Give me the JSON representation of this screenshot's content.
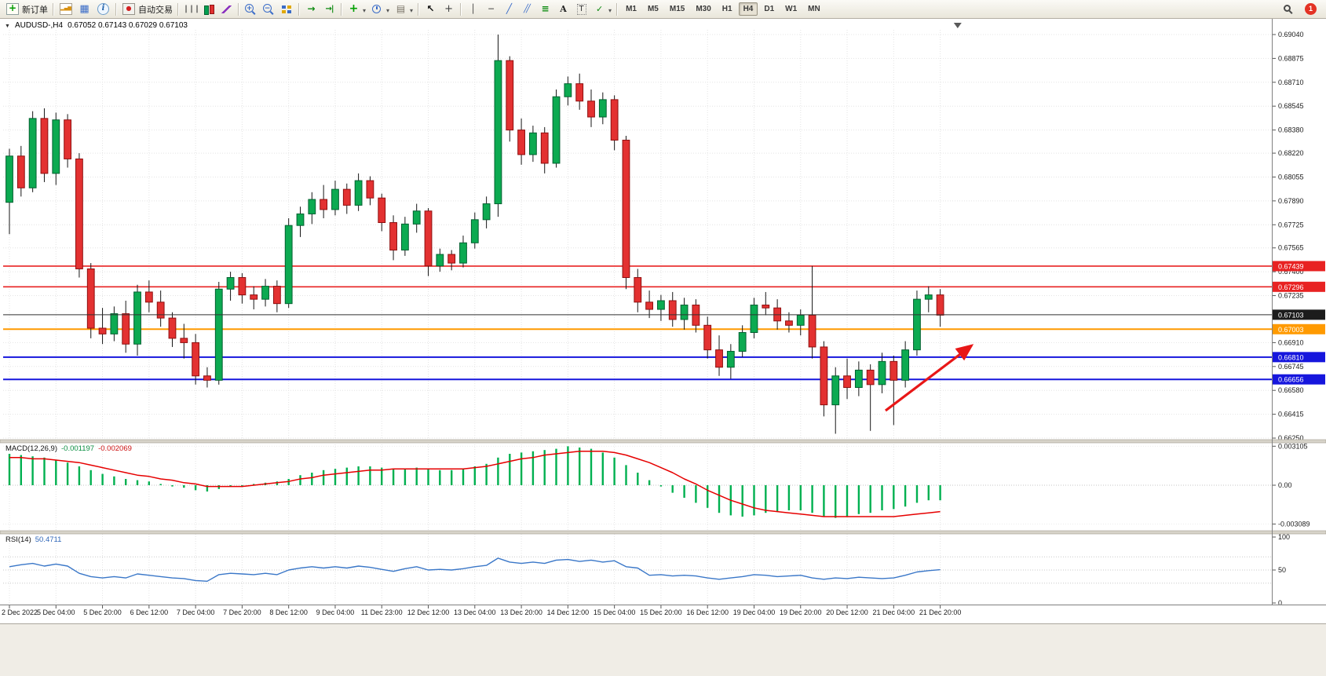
{
  "toolbar": {
    "groups": [
      {
        "items": [
          {
            "name": "new-order-button",
            "icon": "new-order-icon",
            "cls": "ic-neworder",
            "label": "新订单"
          }
        ]
      },
      {
        "items": [
          {
            "name": "chart-window-button",
            "icon": "chart-window-icon",
            "cls": "ic-chartwin"
          },
          {
            "name": "profiles-button",
            "icon": "profiles-icon",
            "cls": "ic-profiles"
          },
          {
            "name": "data-window-button",
            "icon": "data-window-icon",
            "cls": "ic-datawin"
          }
        ]
      },
      {
        "items": [
          {
            "name": "auto-trading-button",
            "icon": "auto-trading-icon",
            "cls": "ic-autotrade",
            "label": "自动交易"
          }
        ]
      },
      {
        "items": [
          {
            "name": "bar-chart-button",
            "icon": "ohlc-bars-icon",
            "cls": "ic-bars"
          },
          {
            "name": "candlestick-chart-button",
            "icon": "candlestick-icon",
            "cls": "ic-candle"
          },
          {
            "name": "line-chart-button",
            "icon": "line-chart-icon",
            "cls": "ic-linechart"
          }
        ]
      },
      {
        "items": [
          {
            "name": "zoom-in-button",
            "icon": "zoom-in-icon",
            "cls": "ic-zoomin"
          },
          {
            "name": "zoom-out-button",
            "icon": "zoom-out-icon",
            "cls": "ic-zoomout"
          },
          {
            "name": "tile-windows-button",
            "icon": "tile-windows-icon",
            "cls": "ic-tile"
          }
        ]
      },
      {
        "items": [
          {
            "name": "auto-scroll-button",
            "icon": "auto-scroll-icon",
            "cls": "ic-autoscroll"
          },
          {
            "name": "chart-shift-button",
            "icon": "chart-shift-icon",
            "cls": "ic-shift"
          }
        ]
      },
      {
        "items": [
          {
            "name": "indicators-button",
            "icon": "indicators-plus-icon",
            "cls": "ic-indicators",
            "dd": true
          },
          {
            "name": "periods-button",
            "icon": "clock-icon",
            "cls": "ic-clock",
            "dd": true
          },
          {
            "name": "templates-button",
            "icon": "template-icon",
            "cls": "ic-templates",
            "dd": true
          }
        ]
      },
      {
        "items": [
          {
            "name": "cursor-button",
            "icon": "cursor-arrow-icon",
            "cls": "ic-cursor"
          },
          {
            "name": "crosshair-button",
            "icon": "crosshair-icon",
            "cls": "ic-crosshair"
          }
        ]
      },
      {
        "items": [
          {
            "name": "vertical-line-button",
            "icon": "vertical-line-icon",
            "cls": "ic-vline"
          },
          {
            "name": "horizontal-line-button",
            "icon": "horizontal-line-icon",
            "cls": "ic-hline"
          },
          {
            "name": "trendline-button",
            "icon": "trendline-icon",
            "cls": "ic-trendline"
          },
          {
            "name": "equidistant-channel-button",
            "icon": "channel-icon",
            "cls": "ic-channel"
          },
          {
            "name": "fibonacci-button",
            "icon": "fibonacci-icon",
            "cls": "ic-fibo"
          },
          {
            "name": "text-button",
            "icon": "text-icon",
            "cls": "ic-text"
          },
          {
            "name": "text-label-button",
            "icon": "text-label-icon",
            "cls": "ic-textlabel"
          },
          {
            "name": "arrows-button",
            "icon": "arrows-icon",
            "cls": "ic-arrows",
            "dd": true
          }
        ]
      }
    ],
    "timeframes": [
      "M1",
      "M5",
      "M15",
      "M30",
      "H1",
      "H4",
      "D1",
      "W1",
      "MN"
    ],
    "active_timeframe": "H4",
    "notification_count": "1"
  },
  "chart": {
    "title_symbol": "AUDUSD-,H4",
    "title_ohlc": "0.67052 0.67143 0.67029 0.67103"
  },
  "chart_data": {
    "type": "candlestick",
    "symbol": "AUDUSD-",
    "timeframe": "H4",
    "style": {
      "up_fill": "#0caa51",
      "up_stroke": "#036030",
      "down_fill": "#e33131",
      "down_stroke": "#8f0f0f",
      "wick": "#161616",
      "grid": "#e4e4e4",
      "axis_line": "#808080"
    },
    "price_axis": {
      "max": 0.6904,
      "min": 0.6625,
      "labels": [
        "0.69040",
        "0.68875",
        "0.68710",
        "0.68545",
        "0.68380",
        "0.68220",
        "0.68055",
        "0.67890",
        "0.67725",
        "0.67565",
        "0.67400",
        "0.67235",
        "0.66910",
        "0.66745",
        "0.66580",
        "0.66415",
        "0.66250"
      ]
    },
    "time_labels": [
      "2 Dec 2022",
      "5 Dec 04:00",
      "5 Dec 20:00",
      "6 Dec 12:00",
      "7 Dec 04:00",
      "7 Dec 20:00",
      "8 Dec 12:00",
      "9 Dec 04:00",
      "11 Dec 23:00",
      "12 Dec 12:00",
      "13 Dec 04:00",
      "13 Dec 20:00",
      "14 Dec 12:00",
      "15 Dec 04:00",
      "15 Dec 20:00",
      "16 Dec 12:00",
      "19 Dec 04:00",
      "19 Dec 20:00",
      "20 Dec 12:00",
      "21 Dec 04:00",
      "21 Dec 20:00"
    ],
    "bars_per_label": 4,
    "candles": [
      [
        0.6788,
        0.6825,
        0.6766,
        0.682
      ],
      [
        0.682,
        0.6827,
        0.6792,
        0.6798
      ],
      [
        0.6798,
        0.6851,
        0.6795,
        0.6846
      ],
      [
        0.6846,
        0.6853,
        0.6802,
        0.6808
      ],
      [
        0.6808,
        0.685,
        0.68,
        0.6845
      ],
      [
        0.6845,
        0.6849,
        0.6812,
        0.6818
      ],
      [
        0.6818,
        0.6822,
        0.6736,
        0.6742
      ],
      [
        0.6742,
        0.6746,
        0.6694,
        0.6701
      ],
      [
        0.6701,
        0.6715,
        0.669,
        0.6697
      ],
      [
        0.6697,
        0.6716,
        0.6692,
        0.6711
      ],
      [
        0.6711,
        0.672,
        0.6684,
        0.669
      ],
      [
        0.669,
        0.6731,
        0.6682,
        0.6726
      ],
      [
        0.6726,
        0.6734,
        0.6712,
        0.6719
      ],
      [
        0.6719,
        0.6727,
        0.6702,
        0.6708
      ],
      [
        0.6708,
        0.6712,
        0.6688,
        0.6694
      ],
      [
        0.6694,
        0.6704,
        0.668,
        0.6691
      ],
      [
        0.6691,
        0.6697,
        0.6662,
        0.6668
      ],
      [
        0.6668,
        0.6674,
        0.666,
        0.6665
      ],
      [
        0.6665,
        0.6733,
        0.6662,
        0.6728
      ],
      [
        0.6728,
        0.674,
        0.672,
        0.6736
      ],
      [
        0.6736,
        0.6739,
        0.6718,
        0.6724
      ],
      [
        0.6724,
        0.673,
        0.6714,
        0.6721
      ],
      [
        0.6721,
        0.6735,
        0.6716,
        0.673
      ],
      [
        0.673,
        0.6734,
        0.6712,
        0.6718
      ],
      [
        0.6718,
        0.6777,
        0.6715,
        0.6772
      ],
      [
        0.6772,
        0.6785,
        0.6764,
        0.678
      ],
      [
        0.678,
        0.6795,
        0.6773,
        0.679
      ],
      [
        0.679,
        0.68,
        0.6777,
        0.6783
      ],
      [
        0.6783,
        0.6803,
        0.6779,
        0.6797
      ],
      [
        0.6797,
        0.6801,
        0.678,
        0.6786
      ],
      [
        0.6786,
        0.6808,
        0.6782,
        0.6803
      ],
      [
        0.6803,
        0.6806,
        0.6786,
        0.6791
      ],
      [
        0.6791,
        0.6794,
        0.6768,
        0.6774
      ],
      [
        0.6774,
        0.6779,
        0.6748,
        0.6755
      ],
      [
        0.6755,
        0.6778,
        0.6751,
        0.6773
      ],
      [
        0.6773,
        0.6787,
        0.6767,
        0.6782
      ],
      [
        0.6782,
        0.6784,
        0.6737,
        0.6744
      ],
      [
        0.6744,
        0.6756,
        0.674,
        0.6752
      ],
      [
        0.6752,
        0.6755,
        0.6741,
        0.6746
      ],
      [
        0.6746,
        0.6765,
        0.6743,
        0.676
      ],
      [
        0.676,
        0.6781,
        0.6756,
        0.6776
      ],
      [
        0.6776,
        0.6792,
        0.677,
        0.6787
      ],
      [
        0.6787,
        0.6904,
        0.6778,
        0.6886
      ],
      [
        0.6886,
        0.6889,
        0.683,
        0.6838
      ],
      [
        0.6838,
        0.6846,
        0.6814,
        0.6821
      ],
      [
        0.6821,
        0.6841,
        0.6816,
        0.6836
      ],
      [
        0.6836,
        0.684,
        0.6808,
        0.6815
      ],
      [
        0.6815,
        0.6866,
        0.6812,
        0.6861
      ],
      [
        0.6861,
        0.6875,
        0.6855,
        0.687
      ],
      [
        0.687,
        0.6877,
        0.6852,
        0.6858
      ],
      [
        0.6858,
        0.6866,
        0.684,
        0.6847
      ],
      [
        0.6847,
        0.6864,
        0.6842,
        0.6859
      ],
      [
        0.6859,
        0.6862,
        0.6824,
        0.6831
      ],
      [
        0.6831,
        0.6834,
        0.6728,
        0.6736
      ],
      [
        0.6736,
        0.6742,
        0.6712,
        0.6719
      ],
      [
        0.6719,
        0.6727,
        0.6708,
        0.6714
      ],
      [
        0.6714,
        0.6724,
        0.6706,
        0.672
      ],
      [
        0.672,
        0.6726,
        0.6702,
        0.6707
      ],
      [
        0.6707,
        0.6722,
        0.67,
        0.6717
      ],
      [
        0.6717,
        0.6721,
        0.6698,
        0.6703
      ],
      [
        0.6703,
        0.6709,
        0.668,
        0.6686
      ],
      [
        0.6686,
        0.6696,
        0.6668,
        0.6674
      ],
      [
        0.6674,
        0.669,
        0.6666,
        0.6685
      ],
      [
        0.6685,
        0.6703,
        0.6681,
        0.6698
      ],
      [
        0.6698,
        0.6722,
        0.6694,
        0.6717
      ],
      [
        0.6717,
        0.6726,
        0.671,
        0.6715
      ],
      [
        0.6715,
        0.6721,
        0.67,
        0.6706
      ],
      [
        0.6706,
        0.6712,
        0.6698,
        0.6703
      ],
      [
        0.6703,
        0.6714,
        0.6696,
        0.671
      ],
      [
        0.671,
        0.6744,
        0.668,
        0.6688
      ],
      [
        0.6688,
        0.6692,
        0.664,
        0.6648
      ],
      [
        0.6648,
        0.6674,
        0.6628,
        0.6668
      ],
      [
        0.6668,
        0.668,
        0.6652,
        0.666
      ],
      [
        0.666,
        0.6678,
        0.6654,
        0.6672
      ],
      [
        0.6672,
        0.6676,
        0.663,
        0.6662
      ],
      [
        0.6662,
        0.6684,
        0.6656,
        0.6678
      ],
      [
        0.6678,
        0.6682,
        0.6634,
        0.6665
      ],
      [
        0.6665,
        0.6692,
        0.666,
        0.6686
      ],
      [
        0.6686,
        0.6727,
        0.6682,
        0.6721
      ],
      [
        0.6721,
        0.673,
        0.6712,
        0.6724
      ],
      [
        0.6724,
        0.6728,
        0.6702,
        0.671
      ]
    ],
    "hlines": [
      {
        "price": 0.67439,
        "label": "0.67439",
        "color": "#e82222",
        "width": 1.6,
        "kind": "resistance-line-1"
      },
      {
        "price": 0.67296,
        "label": "0.67296",
        "color": "#e82222",
        "width": 1.6,
        "kind": "resistance-line-2"
      },
      {
        "price": 0.67003,
        "label": "0.67003",
        "color": "#ff9a00",
        "width": 2,
        "kind": "pivot-line"
      },
      {
        "price": 0.6681,
        "label": "0.66810",
        "color": "#1616dd",
        "width": 2,
        "kind": "support-line-1"
      },
      {
        "price": 0.66656,
        "label": "0.66656",
        "color": "#1616dd",
        "width": 2,
        "kind": "support-line-2"
      }
    ],
    "current_price": {
      "price": 0.67103,
      "label": "0.67103",
      "color": "#303030"
    },
    "trend_arrow": {
      "from_bar": 75.3,
      "from_price": 0.6644,
      "to_bar": 82.7,
      "to_price": 0.6689,
      "color": "#e81717"
    },
    "shift_marker_bar": 81.5,
    "macd": {
      "name": "MACD(12,26,9)",
      "value_main": "-0.001197",
      "value_signal": "-0.002069",
      "axis_labels": [
        "0.003105",
        "0.00",
        "-0.003089"
      ],
      "histogram_color": "#00b050",
      "signal_color": "#e60000",
      "histogram_x1000": [
        2.5,
        2.4,
        2.3,
        2.2,
        2.0,
        1.8,
        1.5,
        1.2,
        0.9,
        0.7,
        0.5,
        0.4,
        0.3,
        0.1,
        -0.1,
        -0.2,
        -0.4,
        -0.5,
        -0.3,
        -0.1,
        0.0,
        0.1,
        0.2,
        0.3,
        0.5,
        0.8,
        1.0,
        1.2,
        1.3,
        1.4,
        1.5,
        1.5,
        1.4,
        1.3,
        1.3,
        1.4,
        1.3,
        1.2,
        1.2,
        1.3,
        1.5,
        1.7,
        2.2,
        2.5,
        2.6,
        2.7,
        2.8,
        2.9,
        3.1,
        3.0,
        2.9,
        2.6,
        2.2,
        1.6,
        1.0,
        0.4,
        -0.1,
        -0.6,
        -1.0,
        -1.4,
        -1.8,
        -2.2,
        -2.4,
        -2.5,
        -2.4,
        -2.2,
        -2.1,
        -2.0,
        -2.0,
        -2.2,
        -2.5,
        -2.6,
        -2.5,
        -2.3,
        -2.2,
        -2.0,
        -1.9,
        -1.7,
        -1.4,
        -1.2,
        -1.2
      ],
      "signal_x1000": [
        2.2,
        2.2,
        2.1,
        2.1,
        2.0,
        1.9,
        1.8,
        1.6,
        1.4,
        1.2,
        1.0,
        0.8,
        0.7,
        0.5,
        0.4,
        0.2,
        0.1,
        -0.1,
        -0.1,
        -0.1,
        -0.1,
        0.0,
        0.1,
        0.2,
        0.3,
        0.5,
        0.6,
        0.8,
        0.9,
        1.0,
        1.1,
        1.2,
        1.2,
        1.3,
        1.3,
        1.3,
        1.3,
        1.3,
        1.3,
        1.3,
        1.4,
        1.5,
        1.7,
        1.9,
        2.1,
        2.2,
        2.4,
        2.5,
        2.6,
        2.7,
        2.7,
        2.7,
        2.6,
        2.4,
        2.1,
        1.8,
        1.4,
        1.0,
        0.5,
        0.1,
        -0.4,
        -0.8,
        -1.2,
        -1.5,
        -1.8,
        -2.0,
        -2.1,
        -2.2,
        -2.3,
        -2.4,
        -2.5,
        -2.5,
        -2.5,
        -2.5,
        -2.5,
        -2.5,
        -2.5,
        -2.4,
        -2.3,
        -2.2,
        -2.1
      ]
    },
    "rsi": {
      "name": "RSI(14)",
      "value": "50.4711",
      "axis_labels": [
        "100",
        "50",
        "0"
      ],
      "levels": [
        70,
        50,
        30
      ],
      "line_color": "#3a77c8",
      "values": [
        55,
        58,
        60,
        56,
        59,
        56,
        45,
        40,
        38,
        40,
        38,
        44,
        42,
        40,
        38,
        37,
        34,
        33,
        43,
        45,
        44,
        43,
        45,
        43,
        50,
        53,
        55,
        53,
        55,
        53,
        56,
        54,
        51,
        48,
        52,
        55,
        50,
        51,
        50,
        52,
        55,
        57,
        68,
        62,
        60,
        62,
        60,
        65,
        66,
        63,
        65,
        62,
        64,
        55,
        53,
        42,
        43,
        41,
        42,
        41,
        38,
        36,
        38,
        40,
        43,
        42,
        40,
        41,
        42,
        38,
        36,
        38,
        37,
        39,
        38,
        37,
        38,
        42,
        47,
        49,
        50.47
      ]
    }
  }
}
